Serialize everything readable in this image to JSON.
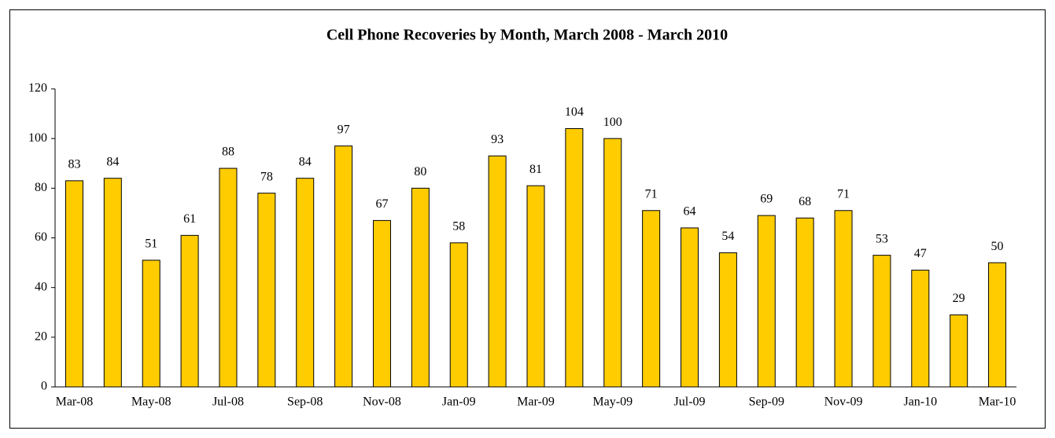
{
  "chart_data": {
    "type": "bar",
    "title": "Cell Phone Recoveries by Month, March 2008 - March 2010",
    "categories": [
      "Mar-08",
      null,
      "May-08",
      null,
      "Jul-08",
      null,
      "Sep-08",
      null,
      "Nov-08",
      null,
      "Jan-09",
      null,
      "Mar-09",
      null,
      "May-09",
      null,
      "Jul-09",
      null,
      "Sep-09",
      null,
      "Nov-09",
      null,
      "Jan-10",
      null,
      "Mar-10"
    ],
    "values": [
      83,
      84,
      51,
      61,
      88,
      78,
      84,
      97,
      67,
      80,
      58,
      93,
      81,
      104,
      100,
      71,
      64,
      54,
      69,
      68,
      71,
      53,
      47,
      29,
      50
    ],
    "color": "#ffcc00",
    "ylim": [
      0,
      120
    ],
    "yticks": [
      0,
      20,
      40,
      60,
      80,
      100,
      120
    ],
    "grid": false
  }
}
